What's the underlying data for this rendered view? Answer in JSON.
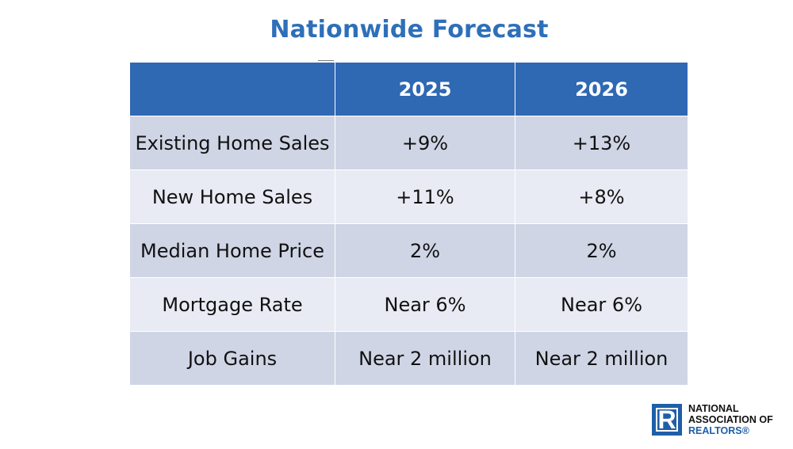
{
  "title": "Nationwide Forecast",
  "table": {
    "header": [
      "",
      "2025",
      "2026"
    ],
    "rows": [
      {
        "label": "Existing Home Sales",
        "y2025": "+9%",
        "y2026": "+13%"
      },
      {
        "label": "New Home Sales",
        "y2025": "+11%",
        "y2026": "+8%"
      },
      {
        "label": "Median Home Price",
        "y2025": "2%",
        "y2026": "2%"
      },
      {
        "label": "Mortgage Rate",
        "y2025": "Near 6%",
        "y2026": "Near 6%"
      },
      {
        "label": "Job Gains",
        "y2025": "Near 2 million",
        "y2026": "Near 2 million"
      }
    ]
  },
  "logo": {
    "mark_letter": "R",
    "line1": "NATIONAL",
    "line2": "ASSOCIATION OF",
    "line3": "REALTORS®"
  },
  "colors": {
    "title": "#2e6fb9",
    "header_bg": "#2f68b3",
    "row_dark": "#cfd5e5",
    "row_light": "#e8ebf3",
    "logo_blue": "#1f5fa8"
  }
}
